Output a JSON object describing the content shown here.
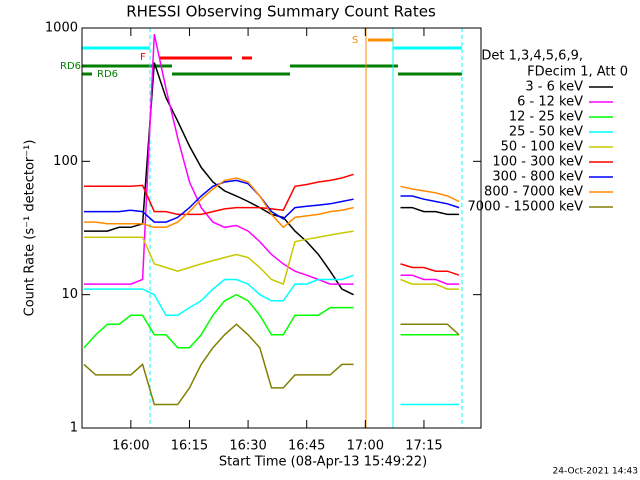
{
  "chart_data": {
    "type": "line",
    "title": "RHESSI Observing Summary Count Rates",
    "xlabel": "Start Time (08-Apr-13 15:49:22)",
    "ylabel": "Count Rate (s⁻¹ detector⁻¹)",
    "legend_header": [
      "Det 1,3,4,5,6,9,",
      "FDecim 1, Att 0"
    ],
    "timestamp": "24-Oct-2021 14:43",
    "annotations": [
      "RD6",
      "RD6",
      "F",
      "S"
    ],
    "log_y": true,
    "ylim": [
      1,
      1000
    ],
    "yticks": [
      1,
      10,
      100,
      1000
    ],
    "xlim": [
      947.5,
      1049.6
    ],
    "xticks": [
      {
        "value": 960,
        "label": "16:00"
      },
      {
        "value": 975,
        "label": "16:15"
      },
      {
        "value": 990,
        "label": "16:30"
      },
      {
        "value": 1005,
        "label": "16:45"
      },
      {
        "value": 1020,
        "label": "17:00"
      },
      {
        "value": 1035,
        "label": "17:15"
      }
    ],
    "x": [
      948,
      951,
      954,
      957,
      960,
      963,
      966,
      969,
      972,
      975,
      978,
      981,
      984,
      987,
      990,
      993,
      996,
      999,
      1002,
      1005,
      1008,
      1011,
      1014,
      1017,
      1020,
      1023,
      1026,
      1029,
      1032,
      1035,
      1038,
      1041,
      1044
    ],
    "series": [
      {
        "name": "3 - 6 keV",
        "color": "#000000",
        "values": [
          30,
          30,
          30,
          32,
          32,
          34,
          550,
          300,
          200,
          130,
          90,
          70,
          60,
          55,
          50,
          45,
          40,
          38,
          30,
          25,
          20,
          15,
          11,
          10,
          null,
          null,
          null,
          45,
          45,
          42,
          42,
          40,
          40
        ]
      },
      {
        "name": "6 - 12 keV",
        "color": "#ff00ff",
        "values": [
          12,
          12,
          12,
          12,
          12,
          13,
          900,
          350,
          150,
          70,
          45,
          35,
          32,
          33,
          30,
          25,
          20,
          17,
          15,
          14,
          13,
          12,
          12,
          12,
          null,
          null,
          null,
          14,
          14,
          13,
          13,
          12,
          12
        ]
      },
      {
        "name": "12 - 25 keV",
        "color": "#00ff00",
        "values": [
          4,
          5,
          6,
          6,
          7,
          7,
          5,
          5,
          4,
          4,
          5,
          7,
          9,
          10,
          9,
          7,
          5,
          5,
          7,
          7,
          7,
          8,
          8,
          8,
          null,
          null,
          null,
          5,
          5,
          5,
          5,
          5,
          5
        ]
      },
      {
        "name": "25 - 50 keV",
        "color": "#00ffff",
        "values": [
          11,
          11,
          11,
          11,
          11,
          11,
          10,
          7,
          7,
          8,
          9,
          11,
          13,
          13,
          12,
          10,
          9,
          9,
          12,
          12,
          13,
          13,
          13,
          14,
          null,
          null,
          null,
          1.5,
          1.5,
          1.5,
          1.5,
          1.5,
          1.5
        ]
      },
      {
        "name": "50 - 100 keV",
        "color": "#c8c800",
        "values": [
          27,
          27,
          27,
          27,
          27,
          27,
          17,
          16,
          15,
          16,
          17,
          18,
          19,
          20,
          19,
          16,
          13,
          12,
          25,
          26,
          27,
          28,
          29,
          30,
          null,
          null,
          null,
          13,
          12,
          12,
          12,
          11,
          11
        ]
      },
      {
        "name": "100 - 300 keV",
        "color": "#ff0000",
        "values": [
          65,
          65,
          65,
          65,
          65,
          66,
          42,
          42,
          40,
          40,
          40,
          42,
          44,
          45,
          45,
          45,
          44,
          43,
          65,
          67,
          70,
          72,
          75,
          80,
          null,
          null,
          null,
          17,
          16,
          16,
          15,
          15,
          14
        ]
      },
      {
        "name": "300 - 800 keV",
        "color": "#0000ff",
        "values": [
          42,
          42,
          42,
          42,
          43,
          42,
          35,
          35,
          38,
          45,
          55,
          65,
          70,
          72,
          68,
          55,
          42,
          37,
          45,
          46,
          47,
          48,
          50,
          52,
          null,
          null,
          null,
          55,
          55,
          52,
          50,
          48,
          45
        ]
      },
      {
        "name": "800 - 7000 keV",
        "color": "#ff8c00",
        "values": [
          35,
          35,
          34,
          34,
          34,
          34,
          32,
          32,
          35,
          42,
          52,
          62,
          72,
          75,
          70,
          55,
          40,
          32,
          38,
          39,
          40,
          42,
          43,
          45,
          null,
          null,
          null,
          65,
          62,
          60,
          58,
          55,
          50
        ]
      },
      {
        "name": "7000 - 15000 keV",
        "color": "#808000",
        "values": [
          3,
          2.5,
          2.5,
          2.5,
          2.5,
          3,
          1.5,
          1.5,
          1.5,
          2,
          3,
          4,
          5,
          6,
          5,
          4,
          2,
          2,
          2.5,
          2.5,
          2.5,
          2.5,
          3,
          3,
          null,
          null,
          null,
          6,
          6,
          6,
          6,
          6,
          5
        ]
      }
    ]
  }
}
